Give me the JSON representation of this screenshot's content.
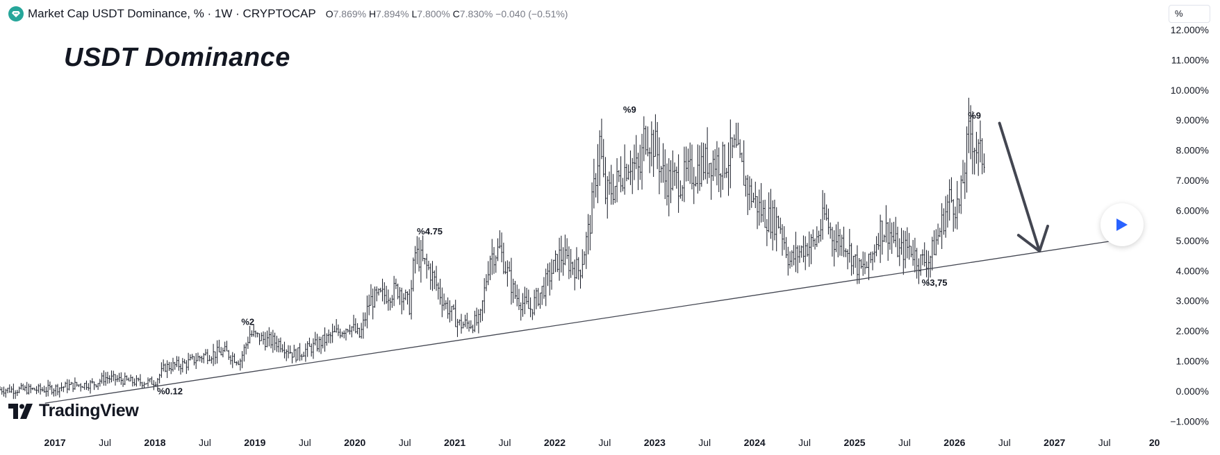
{
  "header": {
    "symbol_title": "Market Cap USDT Dominance, % · 1W · CRYPTOCAP",
    "open_label": "O",
    "open_value": "7.869%",
    "high_label": "H",
    "high_value": "7.894%",
    "low_label": "L",
    "low_value": "7.800%",
    "close_label": "C",
    "close_value": "7.830%",
    "change": "−0.040 (−0.51%)"
  },
  "scale_button_label": "%",
  "overlay_title": "USDT Dominance",
  "brand": "TradingView",
  "icons": {
    "symbol_logo": "tether-diamond-icon",
    "brand_logo": "tradingview-logo-icon",
    "play": "play-icon"
  },
  "colors": {
    "candles": "#131722",
    "trendline": "#434651",
    "arrow": "#434651",
    "play": "#2962ff",
    "axis_text": "#131722",
    "symbol_logo": "#26a69a"
  },
  "chart_data": {
    "type": "candlestick",
    "timeframe": "1W",
    "y_axis": {
      "unit": "%",
      "ylim": [
        -1.2,
        12.3
      ],
      "ticks": [
        "12.000%",
        "11.000%",
        "10.000%",
        "9.000%",
        "8.000%",
        "7.000%",
        "6.000%",
        "5.000%",
        "4.000%",
        "3.000%",
        "2.000%",
        "1.000%",
        "0.000%",
        "−1.000%"
      ],
      "tick_values": [
        12,
        11,
        10,
        9,
        8,
        7,
        6,
        5,
        4,
        3,
        2,
        1,
        0,
        -1
      ],
      "position": "right"
    },
    "x_axis": {
      "xlim": [
        2016.45,
        2028.1
      ],
      "ticks": [
        "2017",
        "Jul",
        "2018",
        "Jul",
        "2019",
        "Jul",
        "2020",
        "Jul",
        "2021",
        "Jul",
        "2022",
        "Jul",
        "2023",
        "Jul",
        "2024",
        "Jul",
        "2025",
        "Jul",
        "2026",
        "Jul",
        "2027",
        "Jul",
        "20"
      ],
      "tick_values": [
        2017.0,
        2017.5,
        2018.0,
        2018.5,
        2019.0,
        2019.5,
        2020.0,
        2020.5,
        2021.0,
        2021.5,
        2022.0,
        2022.5,
        2023.0,
        2023.5,
        2024.0,
        2024.5,
        2025.0,
        2025.5,
        2026.0,
        2026.5,
        2027.0,
        2027.5,
        2028.0
      ],
      "bold_ticks": [
        "2017",
        "2018",
        "2019",
        "2020",
        "2021",
        "2022",
        "2023",
        "2024",
        "2025",
        "2026",
        "2027",
        "20"
      ]
    },
    "grid": false,
    "series": [
      {
        "key_points": [
          [
            2016.45,
            0.05
          ],
          [
            2016.9,
            0.05
          ],
          [
            2017.2,
            0.2
          ],
          [
            2017.4,
            0.25
          ],
          [
            2017.5,
            0.45
          ],
          [
            2017.6,
            0.4
          ],
          [
            2017.8,
            0.3
          ],
          [
            2018.0,
            0.3
          ],
          [
            2018.1,
            0.8
          ],
          [
            2018.3,
            0.9
          ],
          [
            2018.5,
            1.2
          ],
          [
            2018.7,
            1.3
          ],
          [
            2018.85,
            1.0
          ],
          [
            2018.95,
            1.9
          ],
          [
            2019.1,
            1.7
          ],
          [
            2019.25,
            1.6
          ],
          [
            2019.4,
            1.2
          ],
          [
            2019.6,
            1.5
          ],
          [
            2019.8,
            1.9
          ],
          [
            2019.95,
            2.2
          ],
          [
            2020.05,
            1.8
          ],
          [
            2020.15,
            3.0
          ],
          [
            2020.3,
            3.2
          ],
          [
            2020.45,
            3.4
          ],
          [
            2020.55,
            2.8
          ],
          [
            2020.6,
            4.6
          ],
          [
            2020.75,
            4.0
          ],
          [
            2020.9,
            2.9
          ],
          [
            2021.05,
            2.2
          ],
          [
            2021.25,
            2.3
          ],
          [
            2021.35,
            4.5
          ],
          [
            2021.45,
            4.7
          ],
          [
            2021.6,
            3.2
          ],
          [
            2021.75,
            2.7
          ],
          [
            2021.9,
            3.5
          ],
          [
            2022.05,
            4.5
          ],
          [
            2022.25,
            4.0
          ],
          [
            2022.35,
            5.5
          ],
          [
            2022.45,
            8.3
          ],
          [
            2022.5,
            6.5
          ],
          [
            2022.6,
            6.8
          ],
          [
            2022.75,
            7.7
          ],
          [
            2022.85,
            7.2
          ],
          [
            2022.9,
            8.6
          ],
          [
            2023.0,
            8.2
          ],
          [
            2023.1,
            7.0
          ],
          [
            2023.25,
            7.0
          ],
          [
            2023.4,
            7.3
          ],
          [
            2023.55,
            7.7
          ],
          [
            2023.7,
            7.6
          ],
          [
            2023.8,
            8.0
          ],
          [
            2023.95,
            6.6
          ],
          [
            2024.1,
            5.8
          ],
          [
            2024.25,
            5.6
          ],
          [
            2024.35,
            4.3
          ],
          [
            2024.5,
            4.8
          ],
          [
            2024.6,
            4.9
          ],
          [
            2024.7,
            5.8
          ],
          [
            2024.8,
            5.0
          ],
          [
            2024.9,
            5.0
          ],
          [
            2025.05,
            4.0
          ],
          [
            2025.15,
            4.2
          ],
          [
            2025.25,
            5.4
          ],
          [
            2025.35,
            5.3
          ],
          [
            2025.45,
            4.6
          ],
          [
            2025.55,
            4.8
          ],
          [
            2025.65,
            4.3
          ],
          [
            2025.75,
            4.4
          ],
          [
            2025.85,
            5.3
          ],
          [
            2025.95,
            6.4
          ],
          [
            2026.05,
            6.1
          ],
          [
            2026.15,
            8.7
          ],
          [
            2026.25,
            7.8
          ],
          [
            2026.3,
            7.83
          ]
        ]
      }
    ],
    "annotations": [
      {
        "text": "%0.12",
        "x": 2018.15,
        "y": -0.1
      },
      {
        "text": "%2",
        "x": 2018.93,
        "y": 2.2
      },
      {
        "text": "%4.75",
        "x": 2020.75,
        "y": 5.2
      },
      {
        "text": "%9",
        "x": 2022.75,
        "y": 9.25
      },
      {
        "text": "%9",
        "x": 2026.2,
        "y": 9.05
      },
      {
        "text": "%3,75",
        "x": 2025.8,
        "y": 3.5
      }
    ],
    "trendline": {
      "from": [
        2016.9,
        -0.4
      ],
      "to": [
        2027.6,
        5.0
      ]
    },
    "arrow": {
      "from": [
        2026.45,
        8.9
      ],
      "to": [
        2026.85,
        4.65
      ]
    }
  }
}
